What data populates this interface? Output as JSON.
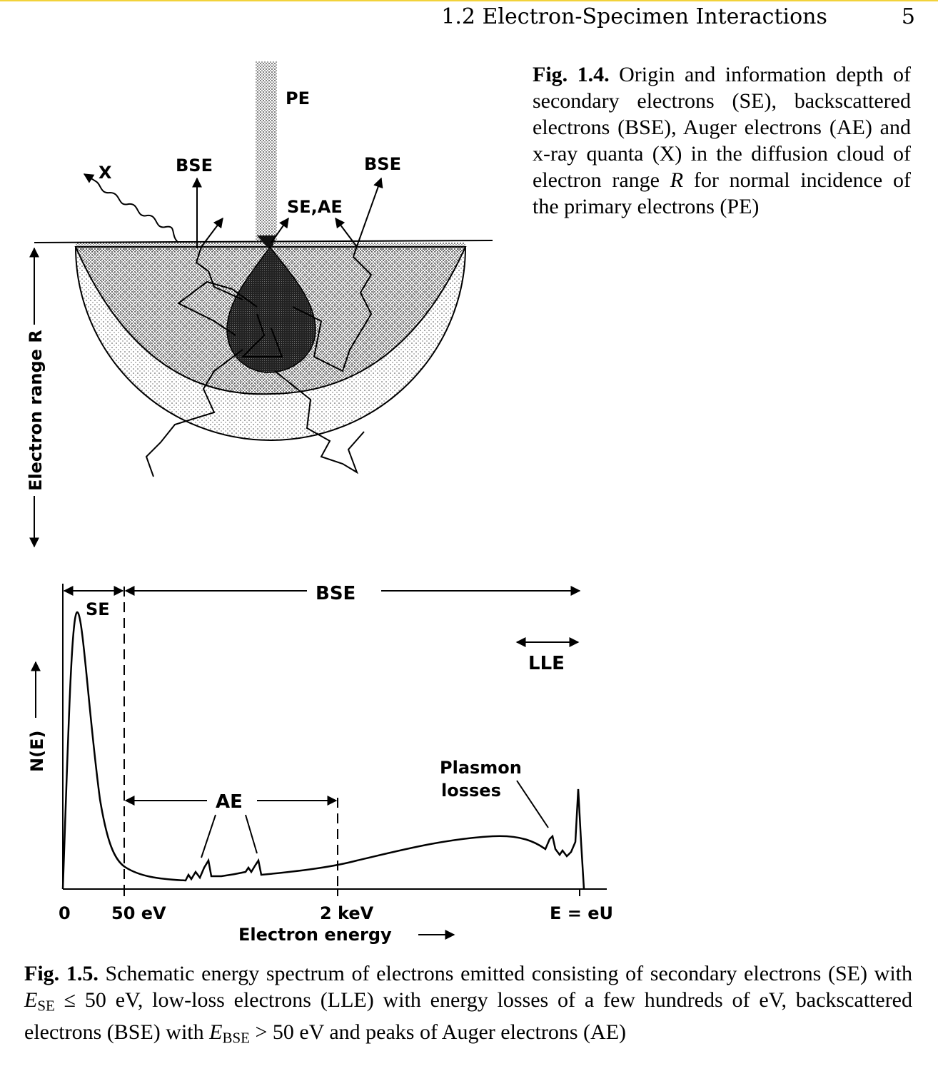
{
  "header": {
    "section": "1.2 Electron-Specimen Interactions",
    "page_number": "5"
  },
  "figure_1_4": {
    "labels": {
      "pe": "PE",
      "bse_left": "BSE",
      "bse_right": "BSE",
      "se_ae": "SE,AE",
      "x": "X",
      "range_axis": "Electron range R"
    },
    "caption": {
      "label": "Fig. 1.4.",
      "text_a": " Origin and information depth of secondary electrons (SE), backscattered electrons (BSE), Auger electrons (AE) and x-ray quanta (X) in the diffusion cloud of electron range ",
      "symbol": "R",
      "text_b": " for normal incidence of the primary electrons (PE)"
    }
  },
  "figure_1_5": {
    "labels": {
      "se": "SE",
      "bse": "BSE",
      "lle": "LLE",
      "ae": "AE",
      "plasmon": "Plasmon",
      "losses": "losses",
      "yaxis": "N(E)",
      "xaxis": "Electron energy"
    },
    "ticks": [
      "0",
      "50 eV",
      "2 keV",
      "E = eU"
    ],
    "caption": {
      "label": "Fig. 1.5.",
      "t1": " Schematic energy spectrum of electrons emitted consisting of secondary electrons (SE) with ",
      "e_se": "E",
      "e_se_sub": "SE",
      "t2": " ≤ 50 eV, low-loss electrons (LLE) with energy losses of a few hundreds of eV, backscattered electrons (BSE) with ",
      "e_bse": "E",
      "e_bse_sub": "BSE",
      "t3": " > 50 eV and peaks of Auger electrons (AE)"
    }
  }
}
